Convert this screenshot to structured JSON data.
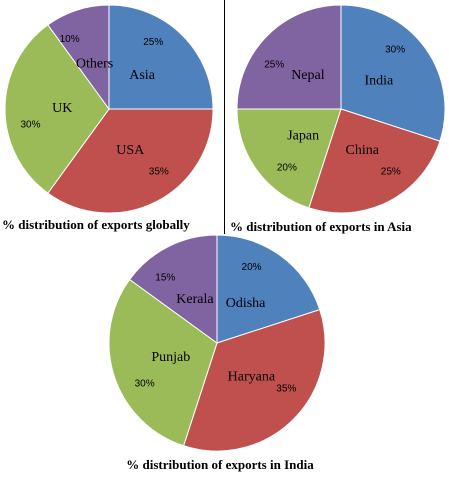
{
  "chart_data": [
    {
      "type": "pie",
      "title": "% distribution of exports globally",
      "categories": [
        "Asia",
        "USA",
        "UK",
        "Others"
      ],
      "values": [
        25,
        35,
        30,
        10
      ],
      "value_labels": [
        "25%",
        "35%",
        "30%",
        "10%"
      ],
      "colors": [
        "#4f81bd",
        "#c0504d",
        "#9bbb59",
        "#8064a2"
      ]
    },
    {
      "type": "pie",
      "title": "% distribution of exports in Asia",
      "categories": [
        "India",
        "China",
        "Japan",
        "Nepal"
      ],
      "values": [
        30,
        25,
        20,
        25
      ],
      "value_labels": [
        "30%",
        "25%",
        "20%",
        "25%"
      ],
      "colors": [
        "#4f81bd",
        "#c0504d",
        "#9bbb59",
        "#8064a2"
      ]
    },
    {
      "type": "pie",
      "title": "% distribution of exports in India",
      "categories": [
        "Odisha",
        "Haryana",
        "Punjab",
        "Kerala"
      ],
      "values": [
        20,
        35,
        30,
        15
      ],
      "value_labels": [
        "20%",
        "35%",
        "30%",
        "15%"
      ],
      "colors": [
        "#4f81bd",
        "#c0504d",
        "#9bbb59",
        "#8064a2"
      ]
    }
  ]
}
